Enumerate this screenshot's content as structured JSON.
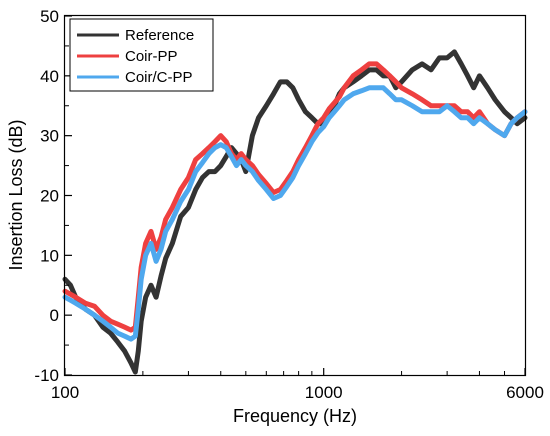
{
  "chart_data": {
    "type": "line",
    "xlabel": "Frequency (Hz)",
    "ylabel": "Insertion Loss (dB)",
    "x_scale": "log",
    "xlim": [
      100,
      6000
    ],
    "ylim": [
      -10,
      50
    ],
    "x_ticks": [
      100,
      1000,
      6000
    ],
    "x_tick_labels": [
      "100",
      "1000",
      "6000"
    ],
    "y_ticks": [
      -10,
      0,
      10,
      20,
      30,
      40,
      50
    ],
    "y_tick_labels": [
      "-10",
      "0",
      "10",
      "20",
      "30",
      "40",
      "50"
    ],
    "grid": false,
    "legend_position": "top-left",
    "series": [
      {
        "name": "Reference",
        "color": "#333333",
        "x": [
          100,
          105,
          110,
          120,
          130,
          140,
          150,
          160,
          170,
          180,
          187,
          192,
          197,
          205,
          215,
          225,
          235,
          245,
          260,
          280,
          300,
          320,
          340,
          360,
          380,
          400,
          420,
          440,
          460,
          480,
          500,
          530,
          560,
          600,
          640,
          680,
          720,
          760,
          800,
          850,
          900,
          950,
          1000,
          1050,
          1100,
          1150,
          1200,
          1300,
          1400,
          1500,
          1600,
          1700,
          1800,
          1900,
          2000,
          2200,
          2400,
          2600,
          2800,
          3000,
          3200,
          3400,
          3600,
          3800,
          4000,
          4300,
          4600,
          5000,
          5300,
          5600,
          6000
        ],
        "y": [
          6,
          5,
          3,
          1,
          0,
          -2,
          -3,
          -4.5,
          -6,
          -8,
          -9.5,
          -6,
          -1,
          3,
          5,
          3,
          6.5,
          9.5,
          12,
          16.5,
          18,
          21,
          23,
          24,
          24,
          25,
          26.5,
          28,
          27,
          26,
          24,
          30,
          33,
          35,
          37,
          39,
          39,
          38,
          36,
          34,
          33,
          32,
          32,
          34,
          35,
          37,
          38,
          39,
          40,
          41,
          41,
          40,
          40,
          38,
          39,
          41,
          42,
          41,
          43,
          43,
          44,
          42,
          40,
          38,
          40,
          38,
          36,
          34,
          33,
          32,
          33
        ]
      },
      {
        "name": "Coir-PP",
        "color": "#ee4040",
        "x": [
          100,
          105,
          110,
          120,
          130,
          140,
          150,
          160,
          170,
          180,
          187,
          192,
          197,
          205,
          215,
          225,
          235,
          245,
          260,
          280,
          300,
          320,
          340,
          360,
          380,
          400,
          420,
          440,
          460,
          480,
          500,
          530,
          560,
          600,
          640,
          680,
          720,
          760,
          800,
          850,
          900,
          950,
          1000,
          1050,
          1100,
          1150,
          1200,
          1300,
          1400,
          1500,
          1600,
          1700,
          1800,
          1900,
          2000,
          2200,
          2400,
          2600,
          2800,
          3000,
          3200,
          3400,
          3600,
          3800,
          4000,
          4300,
          4600,
          5000,
          5300,
          5600,
          6000
        ],
        "y": [
          4,
          3.5,
          3,
          2,
          1.5,
          0,
          -1,
          -1.5,
          -2,
          -2.5,
          -2,
          3,
          8,
          12,
          14,
          11,
          13,
          16,
          18,
          21,
          23,
          26,
          27,
          28,
          29,
          30,
          29,
          27,
          26,
          27,
          26,
          25,
          23.5,
          22,
          20.5,
          21,
          22.5,
          24,
          26,
          28,
          30,
          32,
          33,
          34.5,
          35.5,
          36.5,
          38,
          40,
          41,
          42,
          42,
          41,
          40,
          39,
          38,
          37,
          36,
          35,
          35,
          35,
          35,
          34,
          34,
          33,
          34,
          32,
          31,
          30,
          32,
          33,
          34
        ]
      },
      {
        "name": "Coir/C-PP",
        "color": "#4fa8ee",
        "x": [
          100,
          105,
          110,
          120,
          130,
          140,
          150,
          160,
          170,
          180,
          187,
          192,
          197,
          205,
          215,
          225,
          235,
          245,
          260,
          280,
          300,
          320,
          340,
          360,
          380,
          400,
          420,
          440,
          460,
          480,
          500,
          530,
          560,
          600,
          640,
          680,
          720,
          760,
          800,
          850,
          900,
          950,
          1000,
          1050,
          1100,
          1150,
          1200,
          1300,
          1400,
          1500,
          1600,
          1700,
          1800,
          1900,
          2000,
          2200,
          2400,
          2600,
          2800,
          3000,
          3200,
          3400,
          3600,
          3800,
          4000,
          4300,
          4600,
          5000,
          5300,
          5600,
          6000
        ],
        "y": [
          3,
          2.5,
          2,
          1,
          0,
          -1,
          -2,
          -3,
          -3.5,
          -4,
          -3.5,
          1,
          6,
          10,
          12,
          9,
          11,
          14,
          16,
          19,
          21,
          24,
          25.5,
          27,
          28,
          28.5,
          28,
          26.5,
          25,
          26,
          25,
          24,
          22.5,
          21,
          19.5,
          20,
          21.5,
          23,
          25,
          27,
          29,
          30.5,
          31.5,
          33,
          34,
          35,
          36,
          37,
          37.5,
          38,
          38,
          38,
          37,
          36,
          36,
          35,
          34,
          34,
          34,
          35,
          34,
          33,
          33,
          32,
          33,
          32,
          31,
          30,
          32,
          33,
          34
        ]
      }
    ]
  }
}
